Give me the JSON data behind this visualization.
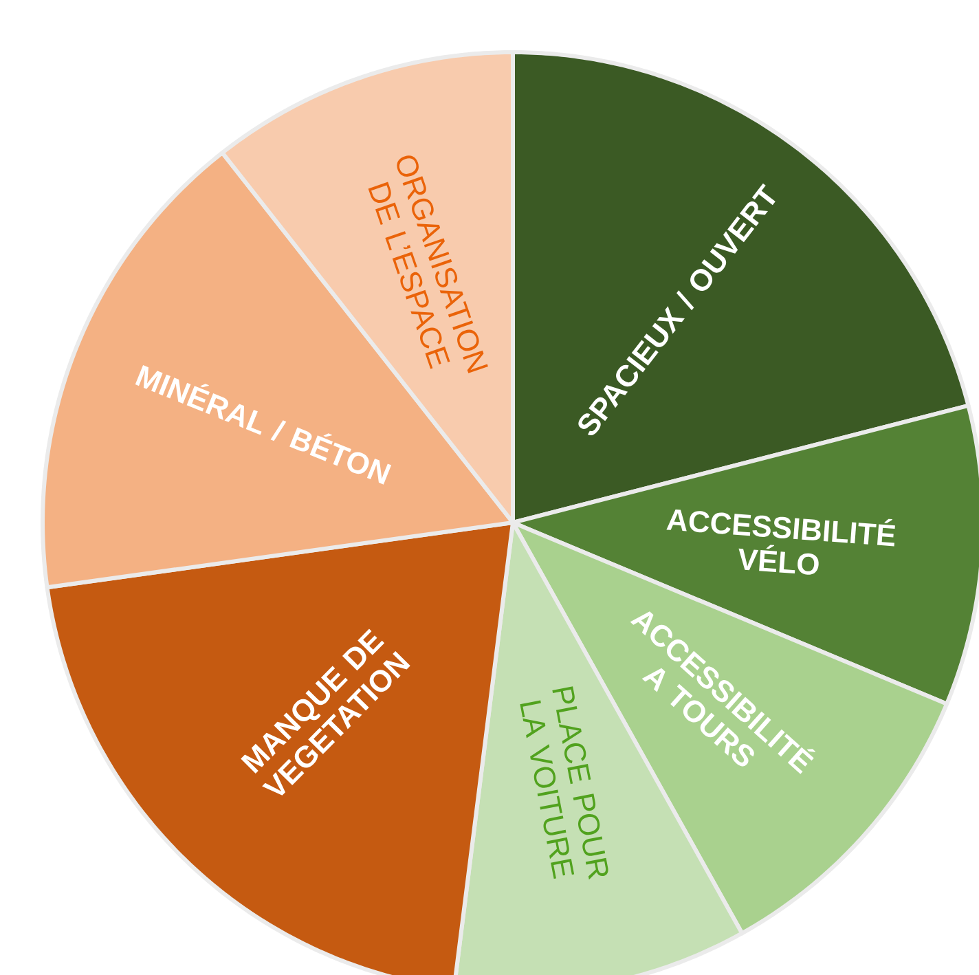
{
  "chart_data": {
    "type": "pie",
    "categories": [
      "SPACIEUX / OUVERT",
      "ACCESSIBILITÉ VÉLO",
      "ACCESSIBILITÉ A TOURS",
      "PLACE POUR LA VOITURE",
      "MANQUE DE VEGETATION",
      "MINÉRAL / BÉTON",
      "ORGANISATION DE L’ESPACE"
    ],
    "values": [
      21,
      10.3,
      10.6,
      10.1,
      20.8,
      16.6,
      10.6
    ],
    "colors": [
      "#3b5a24",
      "#548235",
      "#a9d18e",
      "#c5e0b4",
      "#c55a11",
      "#f4b183",
      "#f8cbad"
    ]
  }
}
